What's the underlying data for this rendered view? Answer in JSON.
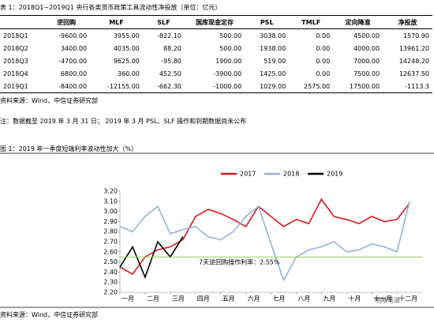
{
  "table": {
    "title": "表 1：2018Q1~2019Q1 央行各类货币政策工具流动性净投放（单位：亿元）",
    "header": [
      "",
      "逆回购",
      "MLF",
      "SLF",
      "国库现金定存",
      "PSL",
      "TMLF",
      "定向降准",
      "净投放"
    ],
    "rows": [
      [
        "2018Q1",
        "-9600.00",
        "3955.00",
        "-822.10",
        "500.00",
        "3038.00",
        "0.00",
        "4500.00",
        "1570.90"
      ],
      [
        "2018Q2",
        "3400.00",
        "4035.00",
        "88.20",
        "500.00",
        "1938.00",
        "0.00",
        "4000.00",
        "13961.20"
      ],
      [
        "2018Q3",
        "-4700.00",
        "9625.00",
        "-95.80",
        "1900.00",
        "519.00",
        "0.00",
        "7000.00",
        "14248.20"
      ],
      [
        "2018Q4",
        "6800.00",
        "360.00",
        "452.50",
        "-3900.00",
        "1425.00",
        "0.00",
        "7500.00",
        "12637.50"
      ],
      [
        "2019Q1",
        "-8400.00",
        "-12155.00",
        "-662.30",
        "-1000.00",
        "1029.00",
        "2575.00",
        "17500.00",
        "-1113.3"
      ]
    ],
    "source": "资料来源：Wind，中信证券研究部"
  },
  "note": "注：数据截至 2019 年 3 月 31 日； 2019 年 3 月 PSL、SLF 操作和到期数据尚未公布",
  "chart_data": {
    "type": "line",
    "title": "图 1：2019 年一季度短端利率波动性加大（%）",
    "x": [
      0,
      0.5,
      1,
      1.5,
      2,
      2.5,
      3,
      3.5,
      4,
      4.5,
      5,
      5.5,
      6,
      6.5,
      7,
      7.5,
      8,
      8.5,
      9,
      9.5,
      10,
      10.5,
      11,
      11.5
    ],
    "xlim": [
      0,
      12
    ],
    "xticks": [
      {
        "value": 0,
        "label": "一月"
      },
      {
        "value": 1,
        "label": "二月"
      },
      {
        "value": 2,
        "label": "三月"
      },
      {
        "value": 3,
        "label": "四月"
      },
      {
        "value": 4,
        "label": "五月"
      },
      {
        "value": 5,
        "label": "六月"
      },
      {
        "value": 6,
        "label": "七月"
      },
      {
        "value": 7,
        "label": "八月"
      },
      {
        "value": 8,
        "label": "九月"
      },
      {
        "value": 9,
        "label": "十月"
      },
      {
        "value": 10,
        "label": "十一月"
      },
      {
        "value": 11,
        "label": "十二月"
      }
    ],
    "ylim": [
      2.2,
      3.2
    ],
    "yticks": [
      {
        "value": 2.2,
        "label": "2.20"
      },
      {
        "value": 2.3,
        "label": "2.30"
      },
      {
        "value": 2.4,
        "label": "2.40"
      },
      {
        "value": 2.5,
        "label": "2.50"
      },
      {
        "value": 2.6,
        "label": "2.60"
      },
      {
        "value": 2.7,
        "label": "2.70"
      },
      {
        "value": 2.8,
        "label": "2.80"
      },
      {
        "value": 2.9,
        "label": "2.90"
      },
      {
        "value": 3.0,
        "label": "3.00"
      },
      {
        "value": 3.1,
        "label": "3.10"
      },
      {
        "value": 3.2,
        "label": "3.20"
      }
    ],
    "series": [
      {
        "name": "2017",
        "color": "#d7191c",
        "values": [
          2.45,
          2.38,
          2.55,
          2.62,
          2.65,
          2.72,
          2.95,
          3.02,
          2.98,
          2.92,
          2.85,
          3.05,
          2.95,
          2.85,
          2.92,
          2.88,
          3.12,
          2.95,
          2.92,
          2.88,
          2.95,
          2.9,
          2.92,
          3.08
        ]
      },
      {
        "name": "2018",
        "color": "#8fb4dc",
        "values": [
          2.85,
          2.8,
          2.95,
          3.05,
          2.78,
          2.82,
          2.85,
          2.75,
          2.72,
          2.8,
          2.95,
          3.05,
          2.68,
          2.32,
          2.55,
          2.62,
          2.65,
          2.7,
          2.6,
          2.62,
          2.68,
          2.65,
          2.6,
          3.1
        ]
      },
      {
        "name": "2019",
        "color": "#000000",
        "values": [
          2.45,
          2.65,
          2.35,
          2.7,
          2.55,
          2.75,
          null,
          null,
          null,
          null,
          null,
          null,
          null,
          null,
          null,
          null,
          null,
          null,
          null,
          null,
          null,
          null,
          null,
          null
        ]
      }
    ],
    "reference_line": {
      "value": 2.55,
      "color": "#92d050",
      "label": "7天逆回购操作利率：2.55%"
    },
    "watermark": "明晰笔谈",
    "source": "资料来源：Wind，中信证券研究部"
  }
}
